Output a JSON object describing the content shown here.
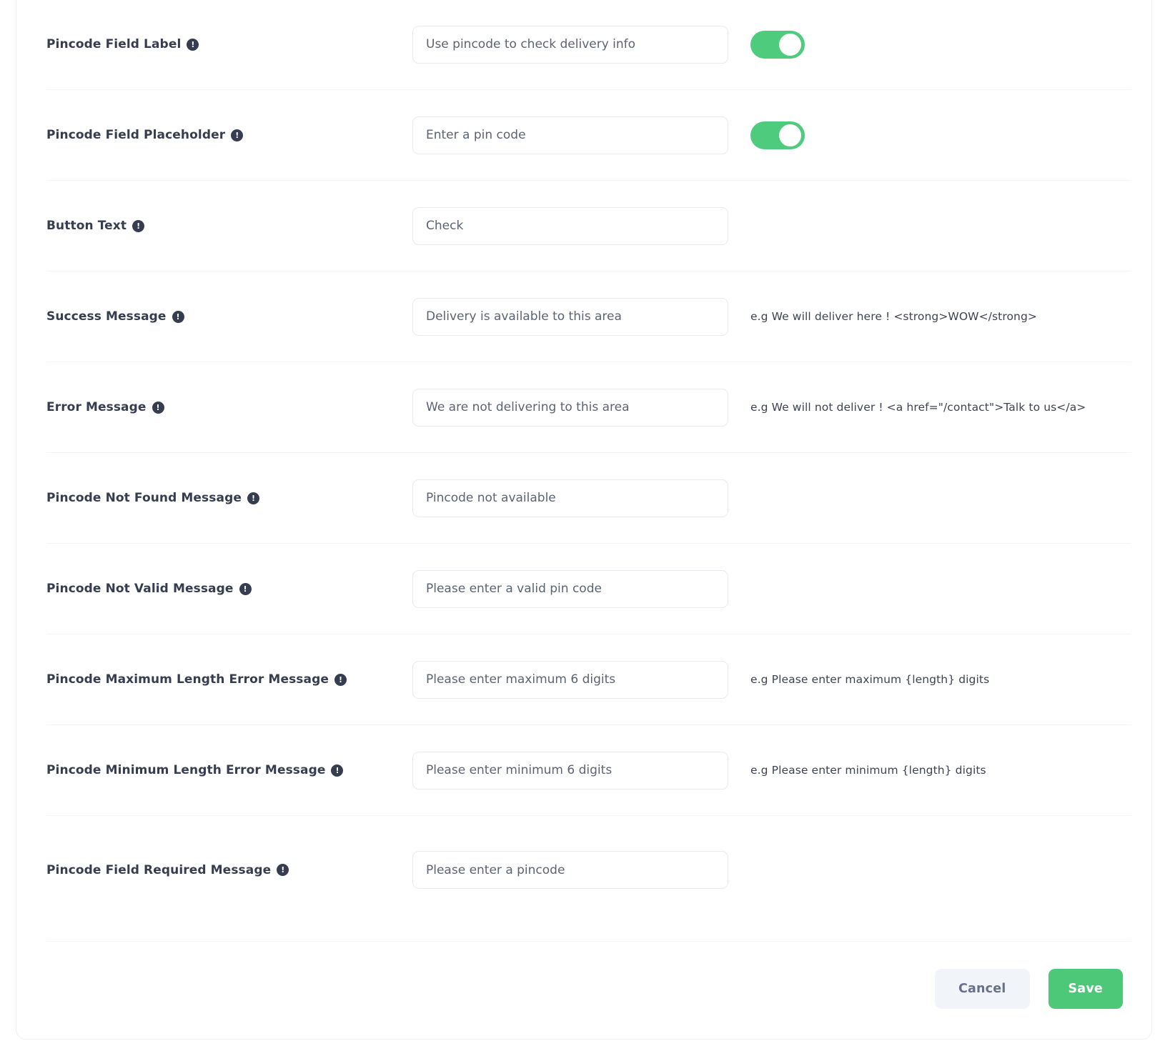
{
  "form": {
    "rows": [
      {
        "label": "Pincode Field Label",
        "value": "Use pincode to check delivery info",
        "toggle": "on",
        "hint": ""
      },
      {
        "label": "Pincode Field Placeholder",
        "value": "Enter a pin code",
        "toggle": "on",
        "hint": ""
      },
      {
        "label": "Button Text",
        "value": "Check",
        "toggle": "",
        "hint": ""
      },
      {
        "label": "Success Message",
        "value": "Delivery is available to this area",
        "toggle": "",
        "hint": "e.g We will deliver here ! <strong>WOW</strong>"
      },
      {
        "label": "Error Message",
        "value": "We are not delivering to this area",
        "toggle": "",
        "hint": "e.g We will not deliver ! <a href=\"/contact\">Talk to us</a>"
      },
      {
        "label": "Pincode Not Found Message",
        "value": "Pincode not available",
        "toggle": "",
        "hint": ""
      },
      {
        "label": "Pincode Not Valid Message",
        "value": "Please enter a valid pin code",
        "toggle": "",
        "hint": ""
      },
      {
        "label": "Pincode Maximum Length Error Message",
        "value": "Please enter maximum 6 digits",
        "toggle": "",
        "hint": "e.g Please enter maximum {length} digits"
      },
      {
        "label": "Pincode Minimum Length Error Message",
        "value": "Please enter minimum 6 digits",
        "toggle": "",
        "hint": "e.g Please enter minimum {length} digits"
      },
      {
        "label": "Pincode Field Required Message",
        "value": "Please enter a pincode",
        "toggle": "",
        "hint": ""
      }
    ],
    "info_icon_glyph": "!",
    "footer": {
      "cancel_label": "Cancel",
      "save_label": "Save"
    },
    "colors": {
      "accent_green": "#4ecb7d",
      "save_green": "#4dc878",
      "label_text": "#363d50",
      "input_text": "#5b6375",
      "cancel_bg": "#f1f5f9"
    }
  }
}
